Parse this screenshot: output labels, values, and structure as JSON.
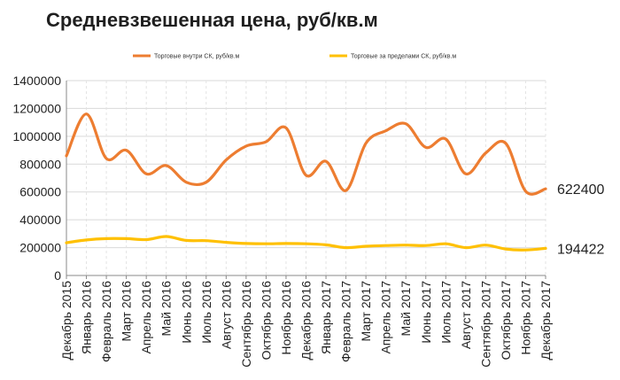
{
  "title": "Средневзвешенная цена, руб/кв.м",
  "colors": {
    "series1": "#ED7D31",
    "series2": "#FFC000",
    "grid": "#D9D9D9",
    "axis": "#888888"
  },
  "chart_data": {
    "type": "line",
    "title": "Средневзвешенная цена, руб/кв.м",
    "xlabel": "",
    "ylabel": "",
    "ylim": [
      0,
      1400000
    ],
    "yticks": [
      0,
      200000,
      400000,
      600000,
      800000,
      1000000,
      1200000,
      1400000
    ],
    "grid": {
      "horizontal": true,
      "vertical": "dashed"
    },
    "legend": "top",
    "categories": [
      "Декабрь 2015",
      "Январь 2016",
      "Февраль 2016",
      "Март 2016",
      "Апрель 2016",
      "Май 2016",
      "Июнь 2016",
      "Июль 2016",
      "Август 2016",
      "Сентябрь 2016",
      "Октябрь 2016",
      "Ноябрь 2016",
      "Декабрь 2016",
      "Январь 2017",
      "Февраль 2017",
      "Март 2017",
      "Апрель 2017",
      "Май 2017",
      "Июнь 2017",
      "Июль 2017",
      "Август 2017",
      "Сентябрь 2017",
      "Октябрь 2017",
      "Ноябрь 2017",
      "Декабрь 2017"
    ],
    "series": [
      {
        "name": "Торговые внутри СК, руб/кв.м",
        "color": "#ED7D31",
        "values": [
          860000,
          1160000,
          840000,
          900000,
          730000,
          790000,
          670000,
          670000,
          830000,
          930000,
          960000,
          1060000,
          720000,
          820000,
          610000,
          950000,
          1040000,
          1090000,
          920000,
          980000,
          730000,
          880000,
          950000,
          605000,
          622400
        ],
        "end_label": "622400"
      },
      {
        "name": "Торговые за пределами СК, руб/кв.м",
        "color": "#FFC000",
        "values": [
          235000,
          255000,
          265000,
          265000,
          258000,
          280000,
          252000,
          250000,
          238000,
          230000,
          228000,
          230000,
          228000,
          220000,
          200000,
          210000,
          215000,
          218000,
          215000,
          228000,
          200000,
          218000,
          190000,
          183000,
          194422
        ],
        "end_label": "194422"
      }
    ]
  }
}
